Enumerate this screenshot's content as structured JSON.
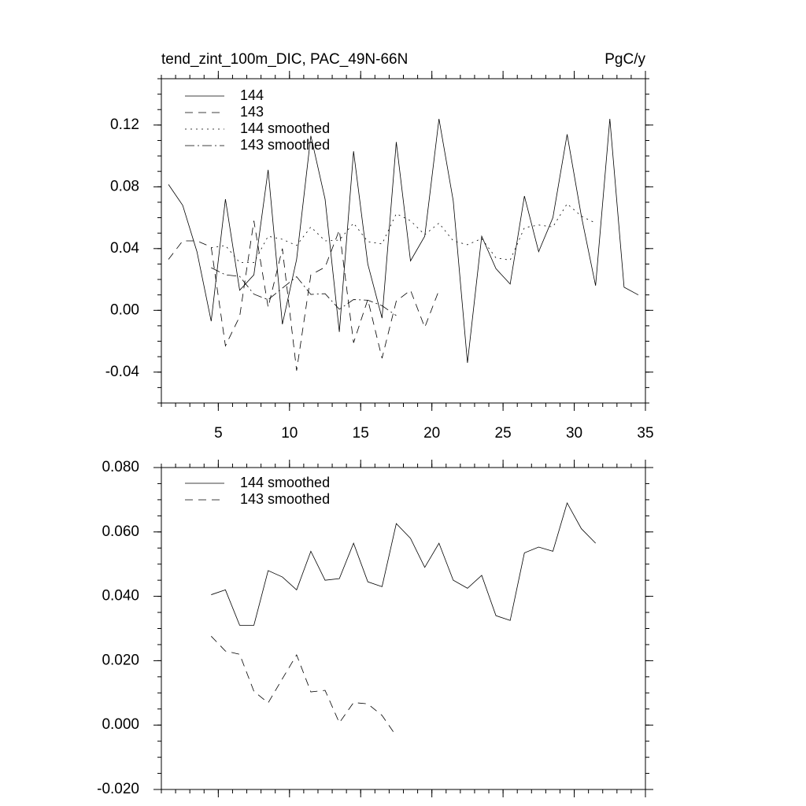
{
  "chart_data": [
    {
      "type": "line",
      "title": "tend_zint_100m_DIC, PAC_49N-66N",
      "units": "PgC/y",
      "x": [
        1.5,
        2.5,
        3.5,
        4.5,
        5.5,
        6.5,
        7.5,
        8.5,
        9.5,
        10.5,
        11.5,
        12.5,
        13.5,
        14.5,
        15.5,
        16.5,
        17.5,
        18.5,
        19.5,
        20.5,
        21.5,
        22.5,
        23.5,
        24.5,
        25.5,
        26.5,
        27.5,
        28.5,
        29.5,
        30.5,
        31.5,
        32.5,
        33.5,
        34.5
      ],
      "series": [
        {
          "name": "144",
          "color": "#000000",
          "style": "solid",
          "values": [
            0.0815,
            0.068,
            0.038,
            -0.007,
            0.072,
            0.013,
            0.023,
            0.091,
            -0.009,
            0.033,
            0.113,
            0.072,
            -0.014,
            0.103,
            0.03,
            -0.005,
            0.109,
            0.032,
            0.048,
            0.124,
            0.071,
            -0.034,
            0.048,
            0.027,
            0.017,
            0.074,
            0.038,
            0.06,
            0.114,
            0.061,
            0.016,
            0.124,
            0.015,
            0.01
          ]
        },
        {
          "name": "143",
          "color": "#000000",
          "style": "dashed",
          "values": [
            0.033,
            0.045,
            0.045,
            0.041,
            -0.023,
            -0.004,
            0.058,
            0.002,
            0.04,
            -0.039,
            0.023,
            0.028,
            0.052,
            -0.021,
            0.007,
            -0.031,
            0.006,
            0.013,
            -0.011,
            0.013,
            null,
            null,
            null,
            null,
            null,
            null,
            null,
            null,
            null,
            null,
            null,
            null,
            null,
            null
          ]
        },
        {
          "name": "144 smoothed",
          "color": "#000000",
          "style": "dotted",
          "values": [
            null,
            null,
            null,
            0.0405,
            0.042,
            0.031,
            0.031,
            0.048,
            0.046,
            0.042,
            0.054,
            0.045,
            0.0455,
            0.0565,
            0.0445,
            0.043,
            0.0626,
            0.058,
            0.049,
            0.0565,
            0.045,
            0.0425,
            0.0465,
            0.034,
            0.0325,
            0.0535,
            0.0553,
            0.054,
            0.069,
            0.061,
            0.0565,
            null,
            null,
            null
          ]
        },
        {
          "name": "143 smoothed",
          "color": "#000000",
          "style": "dashdot",
          "values": [
            null,
            null,
            null,
            0.0276,
            0.023,
            0.022,
            0.0105,
            0.0069,
            0.0144,
            0.0218,
            0.0103,
            0.0108,
            0.0007,
            0.007,
            0.0066,
            0.003,
            -0.0034,
            null,
            null,
            null,
            null,
            null,
            null,
            null,
            null,
            null,
            null,
            null,
            null,
            null,
            null,
            null,
            null,
            null
          ]
        }
      ],
      "xlim": [
        1,
        35
      ],
      "xticks": [
        5,
        10,
        15,
        20,
        25,
        30,
        35
      ],
      "show_xtick_labels": true,
      "ylim": [
        -0.06,
        0.15
      ],
      "yticks": [
        -0.04,
        {
          "value": 0,
          "label": "0.00"
        },
        0.04,
        0.08,
        0.12
      ]
    },
    {
      "type": "line",
      "x": [
        4.5,
        5.5,
        6.5,
        7.5,
        8.5,
        9.5,
        10.5,
        11.5,
        12.5,
        13.5,
        14.5,
        15.5,
        16.5,
        17.5,
        18.5,
        19.5,
        20.5,
        21.5,
        22.5,
        23.5,
        24.5,
        25.5,
        26.5,
        27.5,
        28.5,
        29.5,
        30.5,
        31.5
      ],
      "series": [
        {
          "name": "144 smoothed",
          "color": "#000000",
          "style": "solid",
          "values": [
            0.0405,
            0.042,
            0.031,
            0.031,
            0.048,
            0.046,
            0.042,
            0.054,
            0.045,
            0.0455,
            0.0565,
            0.0445,
            0.043,
            0.0626,
            0.058,
            0.049,
            0.0565,
            0.045,
            0.0425,
            0.0465,
            0.034,
            0.0325,
            0.0535,
            0.0553,
            0.054,
            0.069,
            0.061,
            0.0565
          ]
        },
        {
          "name": "143 smoothed",
          "color": "#000000",
          "style": "dashed",
          "values": [
            0.0276,
            0.023,
            0.022,
            0.0105,
            0.0069,
            0.0144,
            0.0218,
            0.0103,
            0.0108,
            0.0007,
            0.007,
            0.0066,
            0.003,
            -0.0034,
            null,
            null,
            null,
            null,
            null,
            null,
            null,
            null,
            null,
            null,
            null,
            null,
            null,
            null
          ]
        }
      ],
      "xlim": [
        1,
        35
      ],
      "xticks": [
        5,
        10,
        15,
        20,
        25,
        30,
        35
      ],
      "show_xtick_labels": false,
      "ylim": [
        -0.02,
        0.08
      ],
      "yticks": [
        {
          "value": -0.02,
          "label": "-0.020"
        },
        {
          "value": 0,
          "label": "0.000"
        },
        {
          "value": 0.02,
          "label": "0.020"
        },
        {
          "value": 0.04,
          "label": "0.040"
        },
        {
          "value": 0.06,
          "label": "0.060"
        },
        {
          "value": 0.08,
          "label": "0.080"
        }
      ]
    }
  ]
}
